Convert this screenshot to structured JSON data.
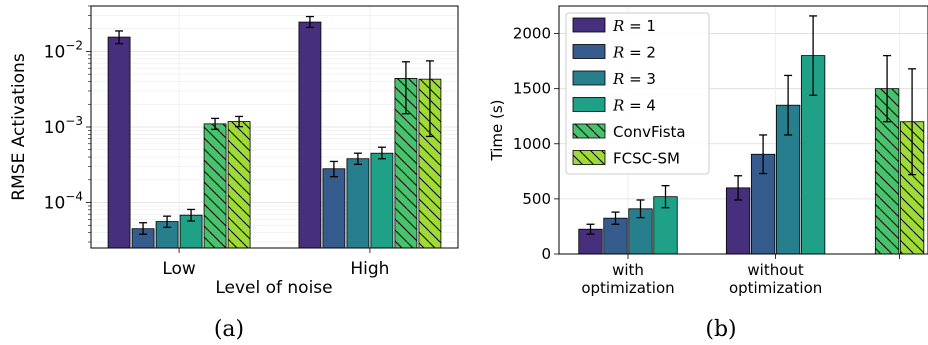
{
  "chart_data": [
    {
      "type": "bar",
      "panel": "a",
      "caption": "(a)",
      "xlabel": "Level of noise",
      "ylabel": "RMSE Activations",
      "yscale": "log",
      "ylim": [
        2.5e-05,
        0.04
      ],
      "yticks": [
        {
          "value": 0.0001,
          "base": "10",
          "exp": "−4"
        },
        {
          "value": 0.001,
          "base": "10",
          "exp": "−3"
        },
        {
          "value": 0.01,
          "base": "10",
          "exp": "−2"
        }
      ],
      "grid": true,
      "categories": [
        "Low",
        "High"
      ],
      "series": [
        {
          "color": "#46307e",
          "hatch": false,
          "values": [
            0.0155,
            0.0245
          ],
          "err_low": [
            0.0127,
            0.0208
          ],
          "err_high": [
            0.0187,
            0.029
          ]
        },
        {
          "color": "#365c8d",
          "hatch": false,
          "values": [
            4.5e-05,
            0.00028
          ],
          "err_low": [
            3.8e-05,
            0.00022
          ],
          "err_high": [
            5.4e-05,
            0.00035
          ]
        },
        {
          "color": "#277f8e",
          "hatch": false,
          "values": [
            5.6e-05,
            0.00038
          ],
          "err_low": [
            4.7e-05,
            0.00032
          ],
          "err_high": [
            6.6e-05,
            0.00045
          ]
        },
        {
          "color": "#1fa187",
          "hatch": false,
          "values": [
            6.8e-05,
            0.00045
          ],
          "err_low": [
            5.7e-05,
            0.00038
          ],
          "err_high": [
            8.1e-05,
            0.00054
          ]
        },
        {
          "color": "#4ac16d",
          "hatch": true,
          "values": [
            0.0011,
            0.0044
          ],
          "err_low": [
            0.00093,
            0.0015
          ],
          "err_high": [
            0.0013,
            0.0073
          ]
        },
        {
          "color": "#a0da39",
          "hatch": true,
          "values": [
            0.00118,
            0.0043
          ],
          "err_low": [
            0.00101,
            0.00075
          ],
          "err_high": [
            0.00138,
            0.0075
          ]
        }
      ]
    },
    {
      "type": "bar",
      "panel": "b",
      "caption": "(b)",
      "ylabel": "Time (s)",
      "ylim": [
        0,
        2250
      ],
      "yticks": [
        0,
        500,
        1000,
        1500,
        2000
      ],
      "grid": true,
      "categories": [
        {
          "lines": [
            "with",
            "optimization"
          ]
        },
        {
          "lines": [
            "without",
            "optimization"
          ]
        },
        {
          "lines": []
        }
      ],
      "series": [
        {
          "name_prefix": "R",
          "name_value": "1",
          "color": "#46307e",
          "hatch": false,
          "values": [
            225,
            600,
            null
          ],
          "err": [
            45,
            110,
            null
          ]
        },
        {
          "name_prefix": "R",
          "name_value": "2",
          "color": "#365c8d",
          "hatch": false,
          "values": [
            325,
            905,
            null
          ],
          "err": [
            55,
            175,
            null
          ]
        },
        {
          "name_prefix": "R",
          "name_value": "3",
          "color": "#277f8e",
          "hatch": false,
          "values": [
            410,
            1350,
            null
          ],
          "err": [
            80,
            270,
            null
          ]
        },
        {
          "name_prefix": "R",
          "name_value": "4",
          "color": "#1fa187",
          "hatch": false,
          "values": [
            520,
            1800,
            null
          ],
          "err": [
            100,
            360,
            null
          ]
        },
        {
          "name": "ConvFista",
          "color": "#4ac16d",
          "hatch": true,
          "values": [
            null,
            null,
            1500
          ],
          "err": [
            null,
            null,
            300
          ]
        },
        {
          "name": "FCSC-SM",
          "color": "#a0da39",
          "hatch": true,
          "values": [
            null,
            null,
            1200
          ],
          "err": [
            null,
            null,
            480
          ]
        }
      ],
      "legend_position": "top-left"
    }
  ]
}
